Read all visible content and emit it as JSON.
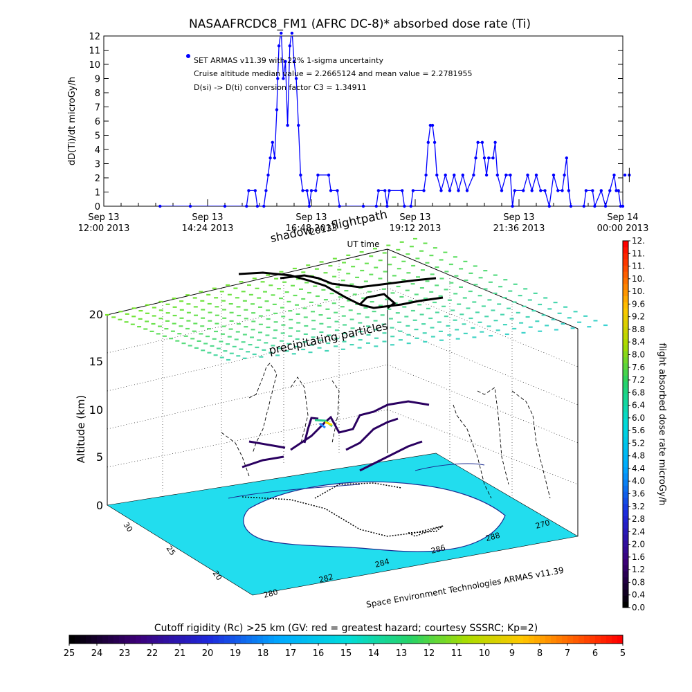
{
  "colors": {
    "series": "#0000ff",
    "ink": "#000000",
    "sea": "#22ddee"
  },
  "top_chart": {
    "title": "NASAAFRCDC8_FM1 (AFRC DC-8)* absorbed dose rate (Ti)",
    "ylabel": "dD(Ti)/dt microGy/h",
    "xlabel": "UT time",
    "annotations": [
      "SET ARMAS v11.39 with 22% 1-sigma uncertainty",
      "Cruise altitude median value = 2.2665124 and mean value = 2.2781955",
      "D(si) -> D(ti) conversion factor C3 = 1.34911"
    ]
  },
  "panel3d": {
    "zlabel": "Altitude (km)",
    "labels": {
      "flightpath": "flightpath",
      "shadow": "shadow",
      "year": "2013",
      "precip": "precipitating particles"
    },
    "credit": "Space Environment Technologies ARMAS v11.39",
    "z_ticks": [
      "0",
      "5",
      "10",
      "15",
      "20"
    ],
    "lat_ticks": [
      "30",
      "25",
      "20"
    ],
    "lon_ticks": [
      "280",
      "282",
      "284",
      "286",
      "288",
      "270"
    ]
  },
  "right_colorbar": {
    "label": "flight absorbed dose rate microGy/h",
    "ticks": [
      "0.0",
      "0.4",
      "0.8",
      "1.2",
      "1.6",
      "2.0",
      "2.4",
      "2.8",
      "3.2",
      "3.6",
      "4.0",
      "4.4",
      "4.8",
      "5.2",
      "5.6",
      "6.0",
      "6.4",
      "6.8",
      "7.2",
      "7.6",
      "8.0",
      "8.4",
      "8.8",
      "9.2",
      "9.6",
      "10.",
      "10.",
      "11.",
      "11.",
      "12."
    ]
  },
  "bottom_colorbar": {
    "title": "Cutoff rigidity (Rc) >25 km (GV: red = greatest hazard; courtesy SSSRC; Kp=2)",
    "ticks": [
      "25",
      "24",
      "23",
      "22",
      "21",
      "20",
      "19",
      "18",
      "17",
      "16",
      "15",
      "14",
      "13",
      "12",
      "11",
      "10",
      "9",
      "8",
      "7",
      "6",
      "5"
    ]
  },
  "chart_data": [
    {
      "type": "line",
      "title": "NASAAFRCDC8_FM1 (AFRC DC-8)* absorbed dose rate (Ti)",
      "xlabel": "UT time",
      "ylabel": "dD(Ti)/dt microGy/h",
      "ylim": [
        0,
        12
      ],
      "xlim_hours": [
        12.0,
        24.0
      ],
      "x_tick_labels": [
        "Sep 13 12:00 2013",
        "Sep 13 14:24 2013",
        "Sep 13 16:48 2013",
        "Sep 13 19:12 2013",
        "Sep 13 21:36 2013",
        "Sep 14 00:00 2013"
      ],
      "y_ticks": [
        0,
        1,
        2,
        3,
        4,
        5,
        6,
        7,
        8,
        9,
        10,
        11,
        12
      ],
      "series": [
        {
          "name": "SET ARMAS v11.39 with 22% 1-sigma uncertainty",
          "points": [
            [
              13.3,
              0
            ],
            [
              14.0,
              0
            ],
            [
              14.8,
              0
            ],
            [
              15.3,
              0
            ],
            [
              15.35,
              1.1
            ],
            [
              15.5,
              1.1
            ],
            [
              15.55,
              0
            ],
            [
              15.7,
              0
            ],
            [
              15.75,
              1.1
            ],
            [
              15.8,
              2.2
            ],
            [
              15.85,
              3.4
            ],
            [
              15.9,
              4.5
            ],
            [
              15.95,
              3.4
            ],
            [
              16.0,
              6.8
            ],
            [
              16.02,
              9.0
            ],
            [
              16.05,
              11.3
            ],
            [
              16.1,
              12.4
            ],
            [
              16.15,
              9.0
            ],
            [
              16.2,
              10.2
            ],
            [
              16.25,
              5.7
            ],
            [
              16.3,
              11.3
            ],
            [
              16.35,
              12.4
            ],
            [
              16.4,
              10.2
            ],
            [
              16.45,
              9.0
            ],
            [
              16.5,
              5.7
            ],
            [
              16.55,
              2.2
            ],
            [
              16.6,
              1.1
            ],
            [
              16.7,
              1.1
            ],
            [
              16.75,
              0
            ],
            [
              16.8,
              1.1
            ],
            [
              16.9,
              1.1
            ],
            [
              16.95,
              2.2
            ],
            [
              17.2,
              2.2
            ],
            [
              17.25,
              1.1
            ],
            [
              17.4,
              1.1
            ],
            [
              17.45,
              0
            ],
            [
              18.0,
              0
            ],
            [
              18.3,
              0
            ],
            [
              18.35,
              1.1
            ],
            [
              18.5,
              1.1
            ],
            [
              18.55,
              0
            ],
            [
              18.6,
              1.1
            ],
            [
              18.9,
              1.1
            ],
            [
              18.95,
              0
            ],
            [
              19.1,
              0
            ],
            [
              19.15,
              1.1
            ],
            [
              19.4,
              1.1
            ],
            [
              19.45,
              2.2
            ],
            [
              19.5,
              4.5
            ],
            [
              19.55,
              5.7
            ],
            [
              19.6,
              5.7
            ],
            [
              19.65,
              4.5
            ],
            [
              19.7,
              2.2
            ],
            [
              19.8,
              1.1
            ],
            [
              19.9,
              2.2
            ],
            [
              20.0,
              1.1
            ],
            [
              20.1,
              2.2
            ],
            [
              20.2,
              1.1
            ],
            [
              20.3,
              2.2
            ],
            [
              20.4,
              1.1
            ],
            [
              20.55,
              2.2
            ],
            [
              20.6,
              3.4
            ],
            [
              20.65,
              4.5
            ],
            [
              20.75,
              4.5
            ],
            [
              20.8,
              3.4
            ],
            [
              20.85,
              2.2
            ],
            [
              20.9,
              3.4
            ],
            [
              21.0,
              3.4
            ],
            [
              21.05,
              4.5
            ],
            [
              21.1,
              2.2
            ],
            [
              21.2,
              1.1
            ],
            [
              21.3,
              2.2
            ],
            [
              21.4,
              2.2
            ],
            [
              21.45,
              0
            ],
            [
              21.5,
              1.1
            ],
            [
              21.7,
              1.1
            ],
            [
              21.8,
              2.2
            ],
            [
              21.9,
              1.1
            ],
            [
              22.0,
              2.2
            ],
            [
              22.1,
              1.1
            ],
            [
              22.2,
              1.1
            ],
            [
              22.3,
              0
            ],
            [
              22.4,
              2.2
            ],
            [
              22.5,
              1.1
            ],
            [
              22.6,
              1.1
            ],
            [
              22.65,
              2.2
            ],
            [
              22.7,
              3.4
            ],
            [
              22.75,
              1.1
            ],
            [
              22.8,
              0
            ],
            [
              23.1,
              0
            ],
            [
              23.15,
              1.1
            ],
            [
              23.3,
              1.1
            ],
            [
              23.35,
              0
            ],
            [
              23.5,
              1.1
            ],
            [
              23.6,
              0
            ],
            [
              23.7,
              1.1
            ],
            [
              23.8,
              2.2
            ],
            [
              23.85,
              1.1
            ],
            [
              23.9,
              1.1
            ],
            [
              23.95,
              0
            ],
            [
              24.0,
              0
            ],
            [
              24.05,
              2.2
            ],
            [
              24.15,
              2.2
            ]
          ]
        }
      ]
    }
  ]
}
